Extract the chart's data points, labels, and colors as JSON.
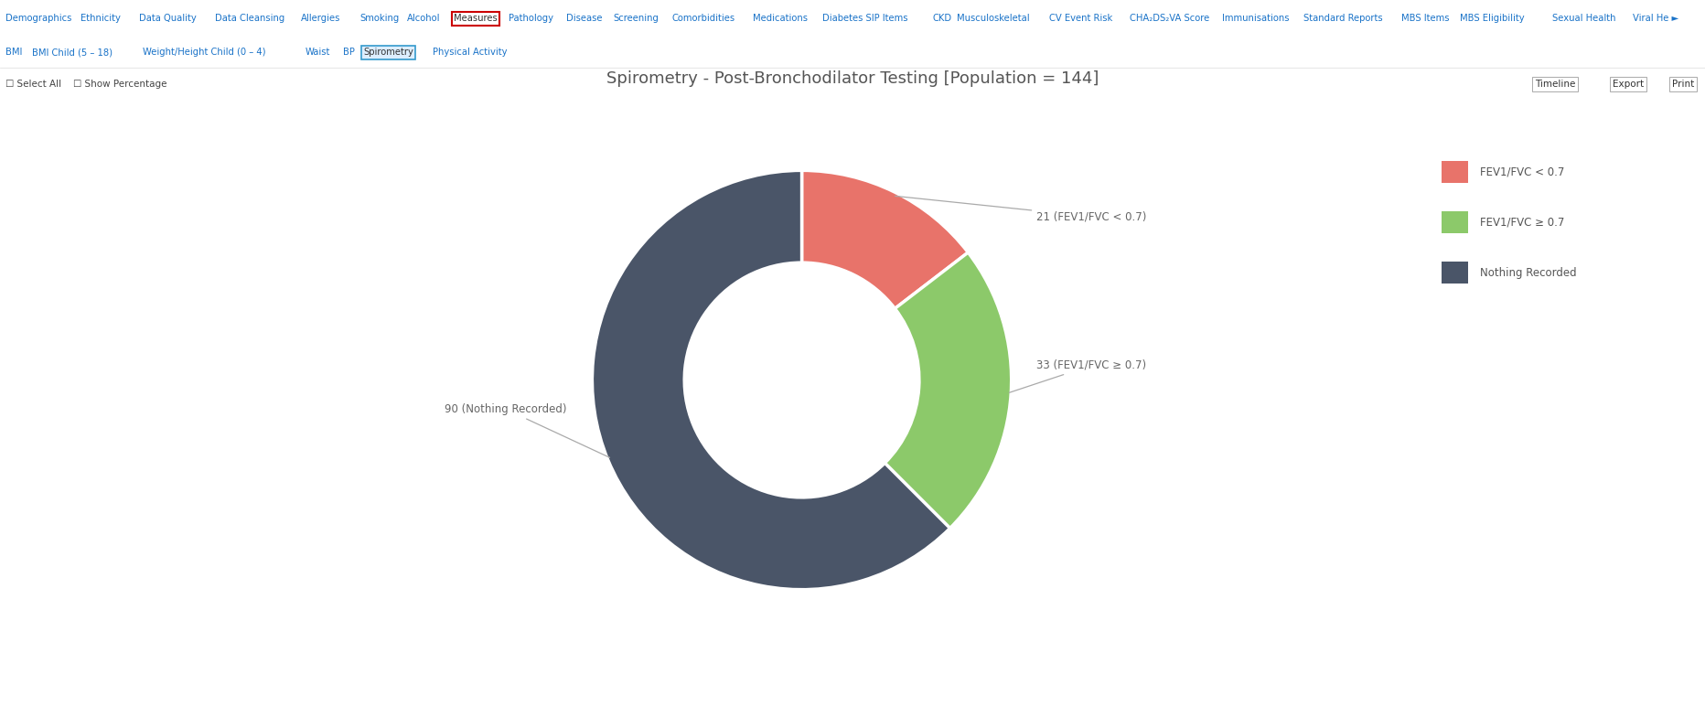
{
  "title": "Spirometry - Post-Bronchodilator Testing [Population = 144]",
  "title_fontsize": 13,
  "slices": [
    21,
    33,
    90
  ],
  "colors": [
    "#E8736A",
    "#8CC96A",
    "#4A5568"
  ],
  "legend_labels": [
    "FEV1/FVC < 0.7",
    "FEV1/FVC ≥ 0.7",
    "Nothing Recorded"
  ],
  "legend_colors": [
    "#E8736A",
    "#8CC96A",
    "#4A5568"
  ],
  "bg_color": "#FFFFFF",
  "top_bar_color": "#EAF4FB",
  "nav_items": [
    "Demographics",
    "Ethnicity",
    "Data Quality",
    "Data Cleansing",
    "Allergies",
    "Smoking",
    "Alcohol",
    "Measures",
    "Pathology",
    "Disease",
    "Screening",
    "Comorbidities",
    "Medications",
    "Diabetes SIP Items",
    "CKD",
    "Musculoskeletal",
    "CV Event Risk",
    "CHA₂DS₂VA Score",
    "Immunisations",
    "Standard Reports",
    "MBS Items",
    "MBS Eligibility",
    "Sexual Health",
    "Viral He ►"
  ],
  "sub_nav_items": [
    "BMI",
    "BMI Child (5 – 18)",
    "Weight/Height Child (0 – 4)",
    "Waist",
    "BP",
    "Spirometry",
    "Physical Activity"
  ],
  "annotation_labels": [
    "21 (FEV1/FVC < 0.7)",
    "33 (FEV1/FVC ≥ 0.7)",
    "90 (Nothing Recorded)"
  ]
}
